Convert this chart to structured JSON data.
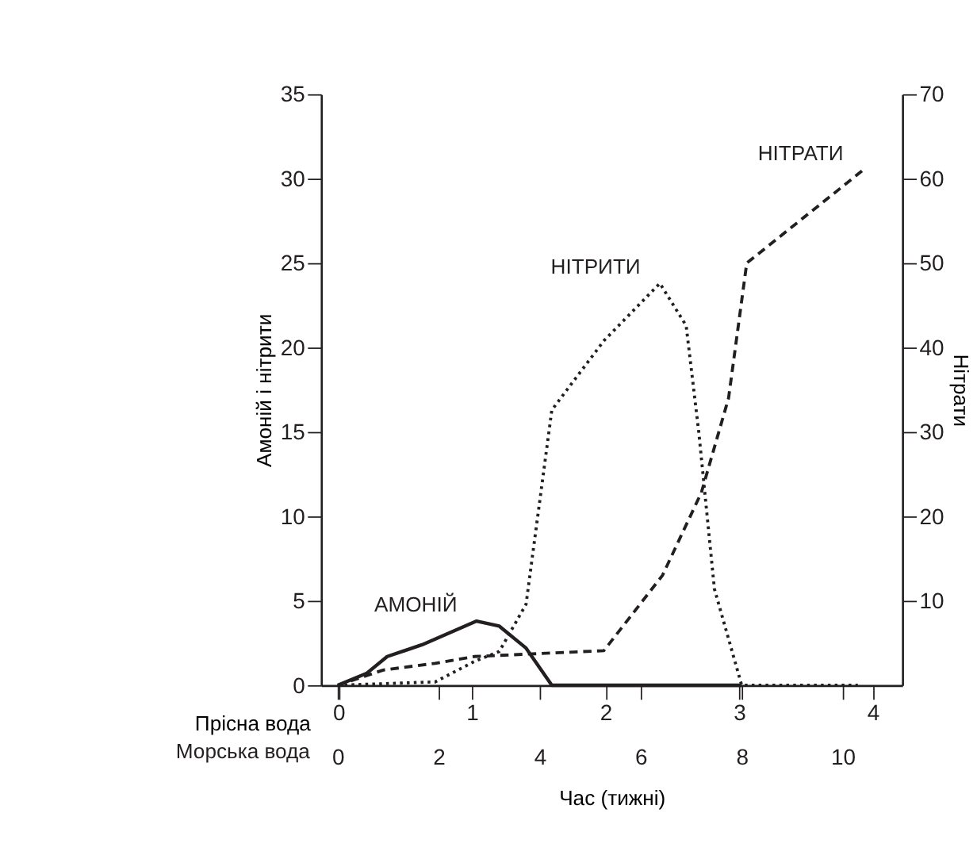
{
  "chart_data": {
    "type": "line",
    "xlabel": "Час (тижні)",
    "ylabel": "Амоній і нітрити",
    "y2label": "Нітрати",
    "x2label": "Прісна вода",
    "annotations": [
      "Морська вода"
    ],
    "xlim": [
      -0.33,
      11.18
    ],
    "xticks": [
      0,
      2,
      4,
      6,
      8,
      10
    ],
    "x2lim": [
      -0.13,
      4.22
    ],
    "x2ticks": [
      0,
      1,
      2,
      3,
      4
    ],
    "ylim": [
      0,
      35
    ],
    "yticks": [
      0,
      5,
      10,
      15,
      20,
      25,
      30,
      35
    ],
    "y2lim": [
      0,
      70
    ],
    "y2ticks": [
      10,
      20,
      30,
      40,
      50,
      60,
      70
    ],
    "grid": false,
    "marker": "none",
    "series": [
      {
        "name": "АМОНІЙ",
        "color": "#231f20",
        "line_style": "solid",
        "x": [
          0,
          0.57,
          0.98,
          1.67,
          2.75,
          3.2,
          3.73,
          4.24,
          8
        ],
        "values": [
          0,
          0.7,
          1.7,
          2.4,
          3.8,
          3.5,
          2.2,
          0,
          0
        ]
      },
      {
        "name": "НІТРИТИ",
        "color": "#231f20",
        "line_style": "dotted",
        "x": [
          0,
          1.93,
          2.7,
          3.2,
          3.73,
          4.24,
          5.27,
          6.38,
          6.9,
          7.15,
          7.46,
          8,
          10.3
        ],
        "values": [
          0,
          0.2,
          1.4,
          2.0,
          4.8,
          16.3,
          20.4,
          23.8,
          21.3,
          15,
          5.7,
          0,
          0
        ]
      },
      {
        "name": "НІТРАТИ",
        "color": "#231f20",
        "line_style": "dashed",
        "axis": "y2",
        "x": [
          0,
          0.9,
          1.93,
          2.7,
          5.27,
          6.43,
          7.2,
          7.74,
          8.1,
          10.4
        ],
        "values": [
          0,
          1.8,
          2.6,
          3.4,
          4.1,
          13,
          22.8,
          34,
          50,
          61
        ]
      }
    ]
  }
}
